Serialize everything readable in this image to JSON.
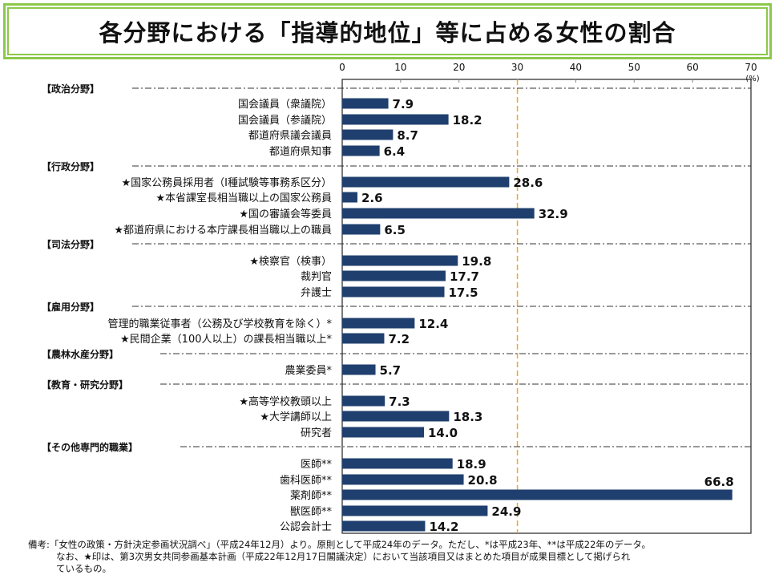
{
  "title": "各分野における「指導的地位」等に占める女性の割合",
  "chart_data": {
    "type": "bar",
    "orientation": "horizontal",
    "title": "各分野における「指導的地位」等に占める女性の割合",
    "xlabel": "(%)",
    "xlim": [
      0,
      70
    ],
    "xticks": [
      "0",
      "10",
      "20",
      "30",
      "40",
      "50",
      "60",
      "70"
    ],
    "reference_line": {
      "value": 30,
      "color": "#f0a818",
      "style": "dashed"
    },
    "bar_color": "#1f3f6e",
    "grid": false,
    "groups": [
      {
        "label": "【政治分野】",
        "items": [
          {
            "label": "国会議員（衆議院）",
            "value": 7.9,
            "value_label": "7.9"
          },
          {
            "label": "国会議員（参議院）",
            "value": 18.2,
            "value_label": "18.2"
          },
          {
            "label": "都道府県議会議員",
            "value": 8.7,
            "value_label": "8.7"
          },
          {
            "label": "都道府県知事",
            "value": 6.4,
            "value_label": "6.4"
          }
        ]
      },
      {
        "label": "【行政分野】",
        "items": [
          {
            "label": "★国家公務員採用者（Ⅰ種試験等事務系区分）",
            "value": 28.6,
            "value_label": "28.6"
          },
          {
            "label": "★本省課室長相当職以上の国家公務員",
            "value": 2.6,
            "value_label": "2.6"
          },
          {
            "label": "★国の審議会等委員",
            "value": 32.9,
            "value_label": "32.9"
          },
          {
            "label": "★都道府県における本庁課長相当職以上の職員",
            "value": 6.5,
            "value_label": "6.5"
          }
        ]
      },
      {
        "label": "【司法分野】",
        "items": [
          {
            "label": "★検察官（検事）",
            "value": 19.8,
            "value_label": "19.8"
          },
          {
            "label": "裁判官",
            "value": 17.7,
            "value_label": "17.7"
          },
          {
            "label": "弁護士",
            "value": 17.5,
            "value_label": "17.5"
          }
        ]
      },
      {
        "label": "【雇用分野】",
        "items": [
          {
            "label": "管理的職業従事者（公務及び学校教育を除く）*",
            "value": 12.4,
            "value_label": "12.4"
          },
          {
            "label": "★民間企業（100人以上）の課長相当職以上*",
            "value": 7.2,
            "value_label": "7.2"
          }
        ]
      },
      {
        "label": "【農林水産分野】",
        "items": [
          {
            "label": "農業委員*",
            "value": 5.7,
            "value_label": "5.7"
          }
        ]
      },
      {
        "label": "【教育・研究分野】",
        "items": [
          {
            "label": "★高等学校教頭以上",
            "value": 7.3,
            "value_label": "7.3"
          },
          {
            "label": "★大学講師以上",
            "value": 18.3,
            "value_label": "18.3"
          },
          {
            "label": "研究者",
            "value": 14.0,
            "value_label": "14.0"
          }
        ]
      },
      {
        "label": "【その他専門的職業】",
        "items": [
          {
            "label": "医師**",
            "value": 18.9,
            "value_label": "18.9"
          },
          {
            "label": "歯科医師**",
            "value": 20.8,
            "value_label": "20.8"
          },
          {
            "label": "薬剤師**",
            "value": 66.8,
            "value_label": "66.8"
          },
          {
            "label": "獣医師**",
            "value": 24.9,
            "value_label": "24.9"
          },
          {
            "label": "公認会計士",
            "value": 14.2,
            "value_label": "14.2"
          }
        ]
      }
    ]
  },
  "notes": {
    "line1": "備考:「女性の政策・方針決定参画状況調べ」（平成24年12月）より。原則として平成24年のデータ。ただし、*は平成23年、**は平成22年のデータ。",
    "line2": "なお、★印は、第3次男女共同参画基本計画（平成22年12月17日閣議決定）において当該項目又はまとめた項目が成果目標として掲げられ",
    "line3": "ているもの。"
  }
}
